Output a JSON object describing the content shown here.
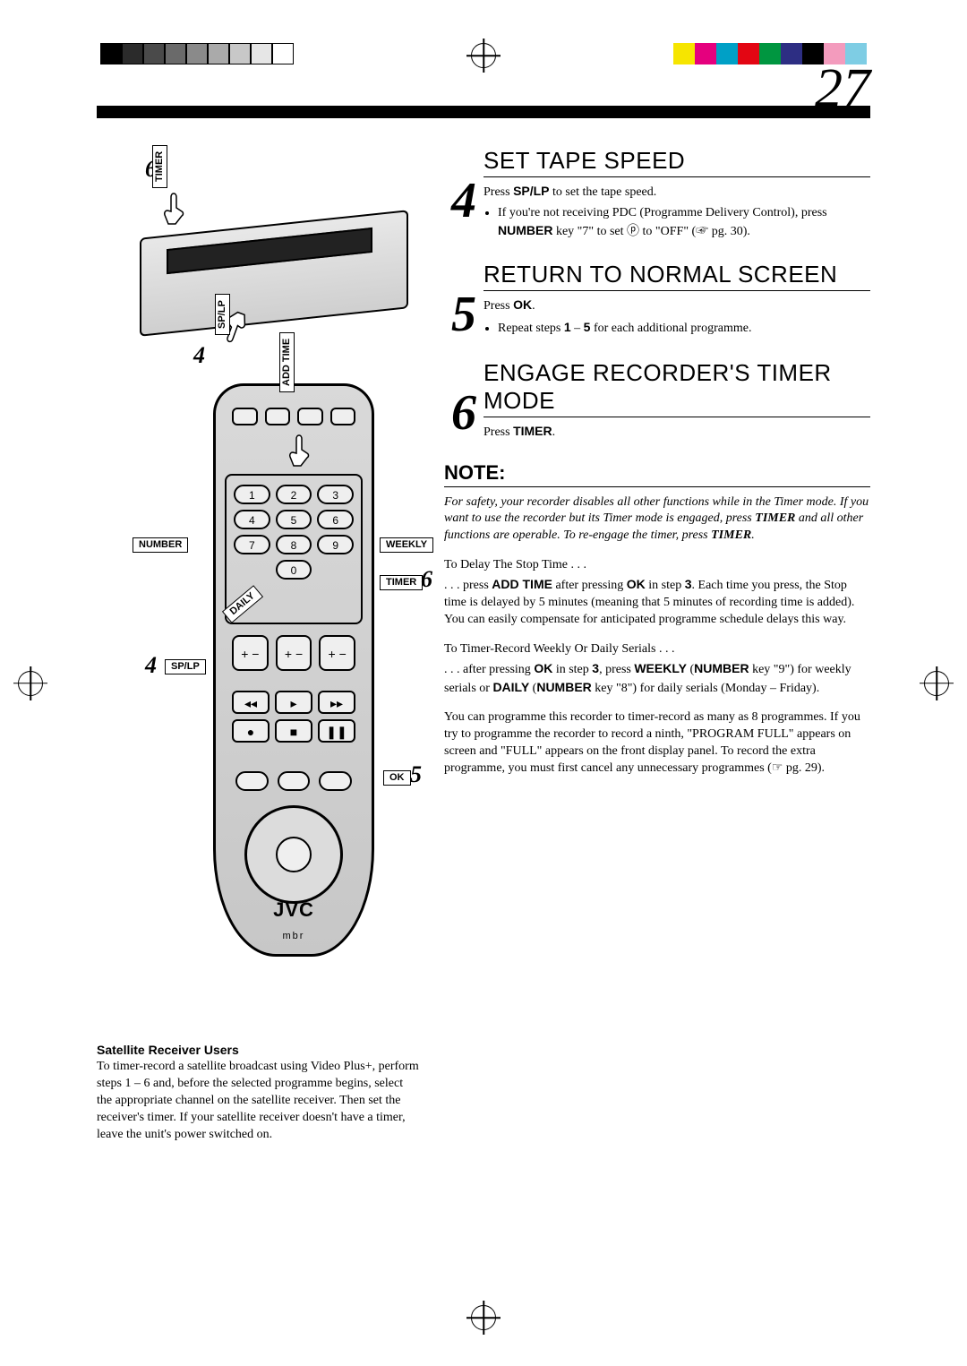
{
  "page_number": "27",
  "grey_swatches": [
    "#000000",
    "#2b2b2b",
    "#4a4a4a",
    "#6a6a6a",
    "#8a8a8a",
    "#aaaaaa",
    "#c8c8c8",
    "#e6e6e6",
    "#ffffff"
  ],
  "color_swatches": [
    "#f6e500",
    "#e5007e",
    "#00a0c6",
    "#e30613",
    "#009640",
    "#2d2e83",
    "#000000",
    "#f39bbd",
    "#7ecde4"
  ],
  "vcr": {
    "callout_6": "6",
    "label_timer": "TIMER",
    "callout_4": "4",
    "label_splp": "SP/LP"
  },
  "remote": {
    "label_addtime": "ADD TIME",
    "label_number": "NUMBER",
    "label_weekly": "WEEKLY",
    "label_timer": "TIMER",
    "callout_timer": "6",
    "label_daily": "DAILY",
    "label_splp": "SP/LP",
    "callout_splp": "4",
    "label_ok": "OK",
    "callout_ok": "5",
    "keypad": [
      "1",
      "2",
      "3",
      "4",
      "5",
      "6",
      "7",
      "8",
      "9",
      "",
      "0",
      ""
    ],
    "brand": "JVC",
    "sub_brand": "mbr"
  },
  "steps": {
    "s4": {
      "num": "4",
      "title": "Set Tape Speed",
      "line1_pre": "Press ",
      "line1_b": "SP/LP",
      "line1_post": " to set the tape speed.",
      "bullet_pre": "If you're not receiving PDC (Programme Delivery Control), press ",
      "bullet_b1": "NUMBER",
      "bullet_mid": " key \"7\" to set ⓟ to \"OFF\" (☞ pg. 30)."
    },
    "s5": {
      "num": "5",
      "title": "Return To Normal Screen",
      "line1_pre": "Press ",
      "line1_b": "OK",
      "line1_post": ".",
      "bullet": "Repeat steps 1 – 5 for each additional programme."
    },
    "s6": {
      "num": "6",
      "title": "Engage Recorder's Timer Mode",
      "line1_pre": "Press ",
      "line1_b": "TIMER",
      "line1_post": "."
    }
  },
  "note": {
    "header": "NOTE:",
    "para1": "For safety, your recorder disables all other functions while in the Timer mode. If you want to use the recorder but its Timer mode is engaged, press TIMER and all other functions are operable. To re-engage the timer, press TIMER.",
    "sub1": "To Delay The Stop Time . . .",
    "para2": ". . . press ADD TIME after pressing OK in step 3. Each time you press, the Stop time is delayed by 5 minutes (meaning that 5 minutes of recording time is added). You can easily compensate for anticipated programme schedule delays this way.",
    "sub2": "To Timer-Record Weekly Or Daily Serials . . .",
    "para3": ". . . after pressing OK in step 3, press WEEKLY (NUMBER key \"9\") for weekly serials or DAILY (NUMBER key \"8\") for daily serials (Monday – Friday).",
    "para4": "You can programme this recorder to timer-record as many as 8 programmes. If you try to programme the recorder to record a ninth, \"PROGRAM FULL\" appears on screen and \"FULL\" appears on the front display panel. To record the extra programme, you must first cancel any unnecessary programmes (☞ pg. 29)."
  },
  "satellite": {
    "heading": "Satellite Receiver Users",
    "body": "To timer-record a satellite broadcast using Video Plus+, perform steps 1 – 6 and, before the selected programme begins, select the appropriate channel on the satellite receiver. Then set the receiver's timer. If your satellite receiver doesn't have a timer, leave the unit's power switched on."
  }
}
